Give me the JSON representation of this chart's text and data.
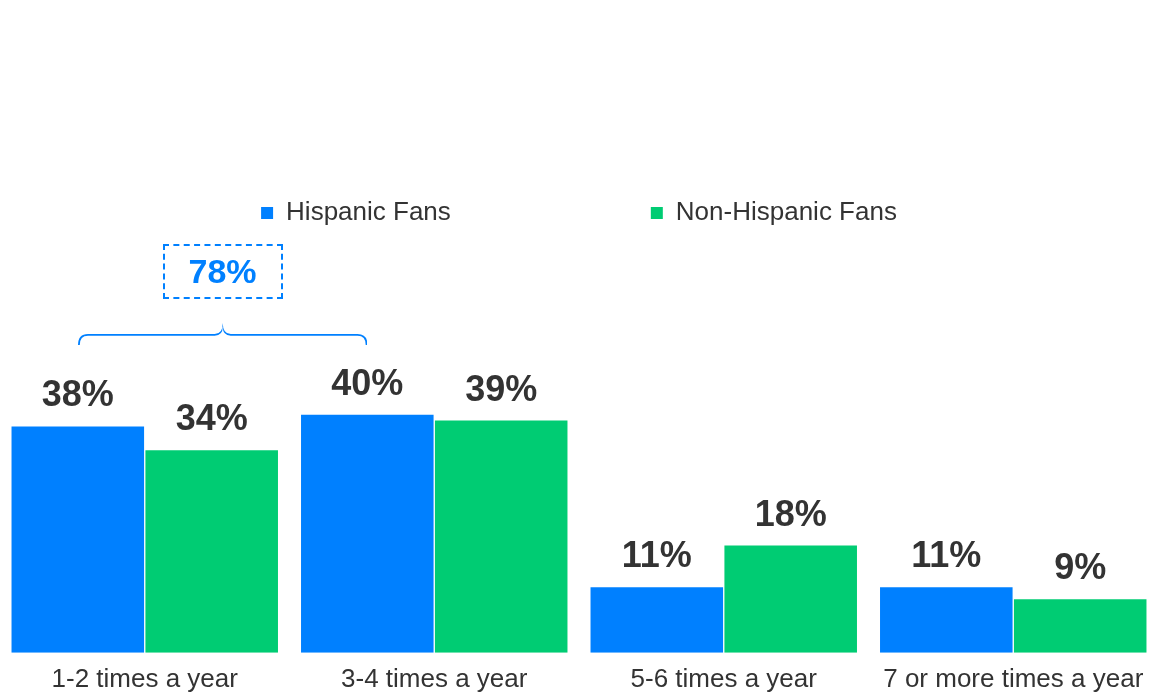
{
  "chart_data": {
    "type": "bar",
    "categories": [
      "1-2 times a year",
      "3-4 times a year",
      "5-6 times a year",
      "7 or more times a year"
    ],
    "series": [
      {
        "name": "Hispanic Fans",
        "color": "#0080ff",
        "values": [
          38,
          40,
          11,
          11
        ],
        "value_labels": [
          "38%",
          "40%",
          "11%",
          "11%"
        ]
      },
      {
        "name": "Non-Hispanic Fans",
        "color": "#00cc73",
        "values": [
          34,
          39,
          18,
          9
        ],
        "value_labels": [
          "34%",
          "39%",
          "18%",
          "9%"
        ]
      }
    ],
    "legend": "top",
    "grid": false,
    "annotations": [
      "78%"
    ]
  }
}
